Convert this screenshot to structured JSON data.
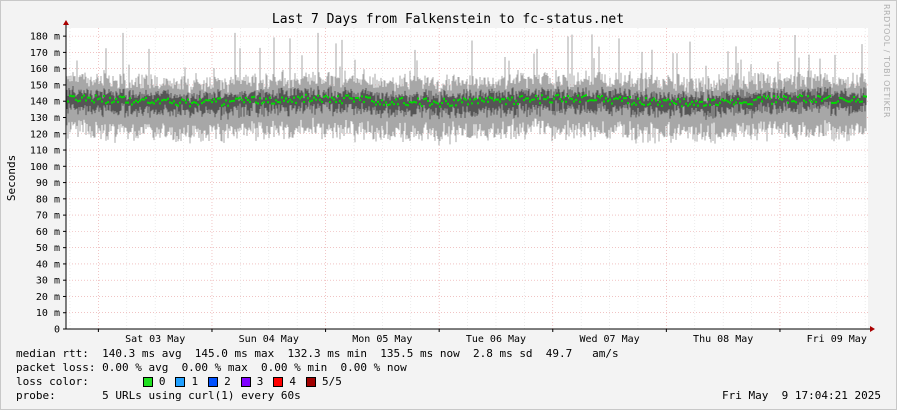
{
  "chart_data": {
    "type": "area",
    "title": "Last 7 Days from Falkenstein to fc-status.net",
    "ylabel": "Seconds",
    "ylim": [
      0,
      185
    ],
    "yticks": [
      0,
      10,
      20,
      30,
      40,
      50,
      60,
      70,
      80,
      90,
      100,
      110,
      120,
      130,
      140,
      150,
      160,
      170,
      180
    ],
    "ytick_labels": [
      "0",
      "10 m",
      "20 m",
      "30 m",
      "40 m",
      "50 m",
      "60 m",
      "70 m",
      "80 m",
      "90 m",
      "100 m",
      "110 m",
      "120 m",
      "130 m",
      "140 m",
      "150 m",
      "160 m",
      "170 m",
      "180 m"
    ],
    "x_labels": [
      "Sat 03 May",
      "Sun 04 May",
      "Mon 05 May",
      "Tue 06 May",
      "Wed 07 May",
      "Thu 08 May",
      "Fri 09 May"
    ],
    "median_range_ms": [
      132.3,
      145.0
    ],
    "median_avg_ms": 140.3,
    "smoke_range_ms": [
      112,
      182
    ],
    "grid": true,
    "colors": {
      "median": "#00dd00",
      "smoke_outer": "#a7a7a7",
      "smoke_inner": "#555555",
      "grid_major": "#e8a0a0",
      "grid_minor": "#e0e0e0",
      "axis": "#000000",
      "arrow": "#aa0000"
    }
  },
  "stats": {
    "median_rtt": "median rtt:  140.3 ms avg  145.0 ms max  132.3 ms min  135.5 ms now  2.8 ms sd  49.7   am/s",
    "packet_loss": "packet loss: 0.00 % avg  0.00 % max  0.00 % min  0.00 % now",
    "loss_color_label": "loss color:",
    "probe": "probe:       5 URLs using curl(1) every 60s"
  },
  "legend": [
    {
      "label": "0",
      "color": "#20e020"
    },
    {
      "label": "1",
      "color": "#20a0ff"
    },
    {
      "label": "2",
      "color": "#0050ff"
    },
    {
      "label": "3",
      "color": "#8000ff"
    },
    {
      "label": "4",
      "color": "#ff0000"
    },
    {
      "label": "5/5",
      "color": "#a00000"
    }
  ],
  "timestamp": "Fri May  9 17:04:21 2025",
  "watermark": "RRDTOOL / TOBI OETIKER"
}
